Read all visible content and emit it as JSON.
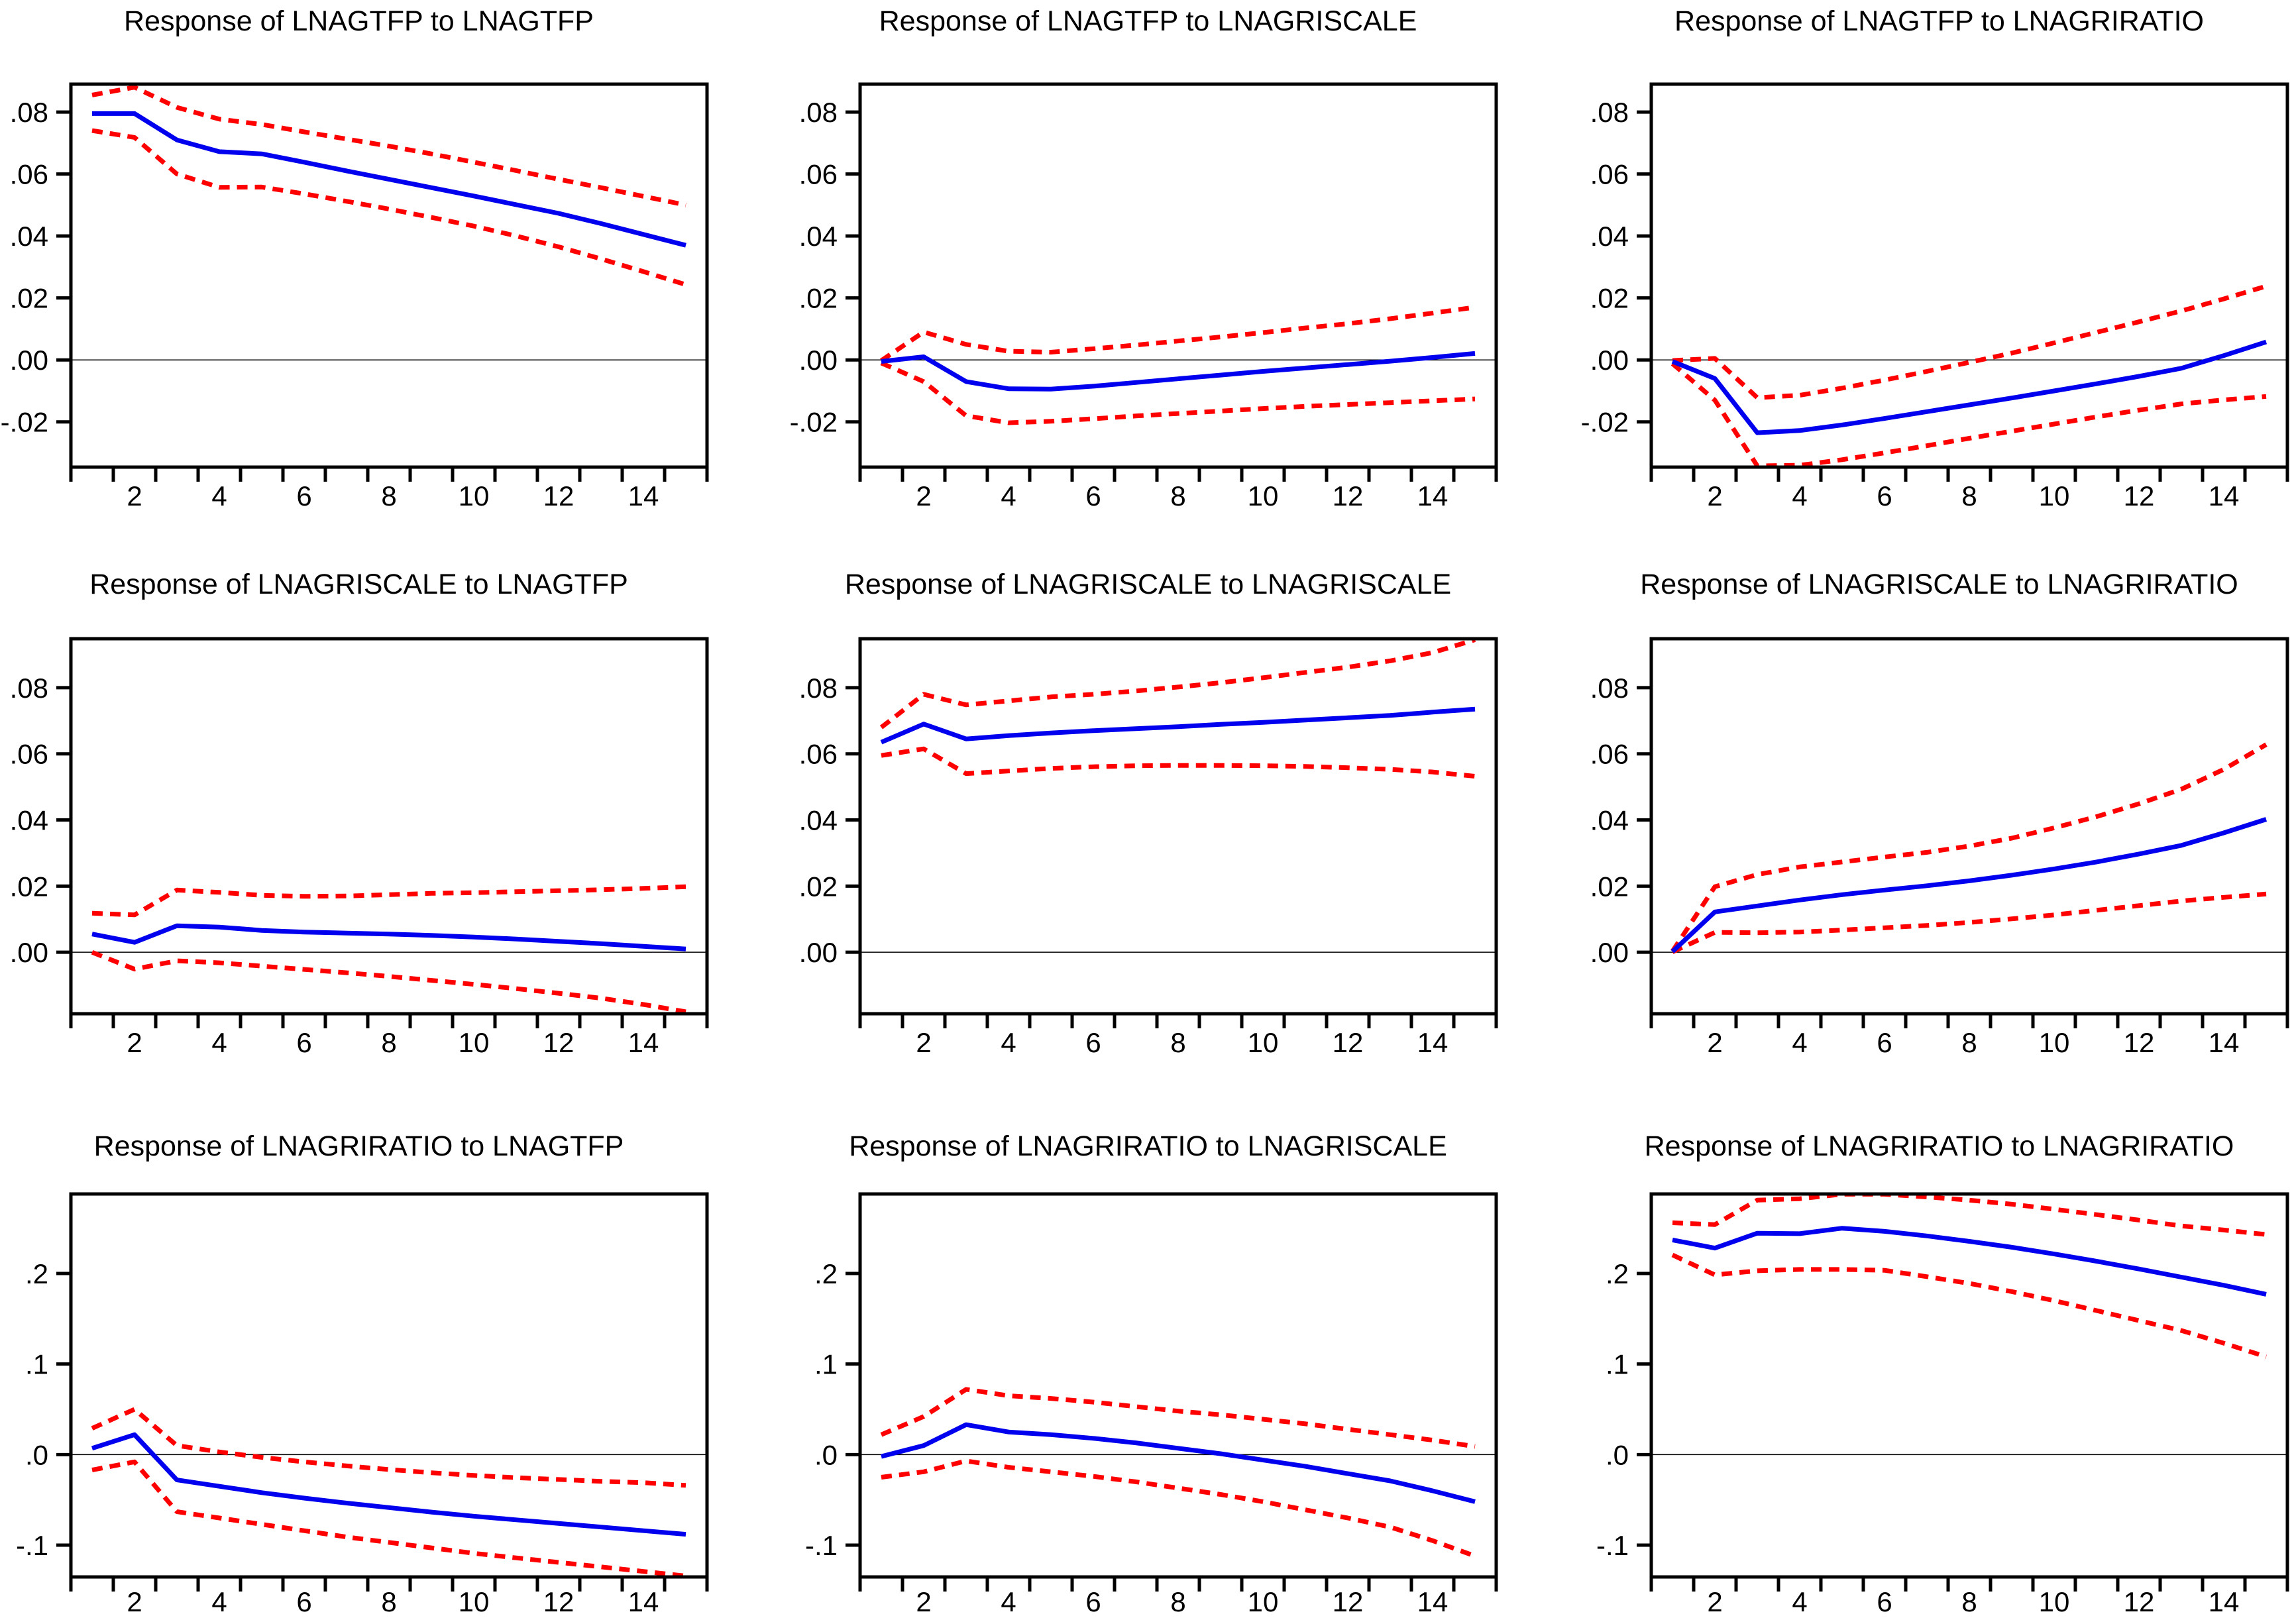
{
  "figure": {
    "kind": "impulse-response-grid",
    "grid_rows": 3,
    "grid_cols": 3,
    "background": "#ffffff"
  },
  "colors": {
    "response_line": "#0000ee",
    "confidence_band": "#ff0000",
    "axis": "#000000",
    "zero_line": "#000000",
    "text": "#000000"
  },
  "x_axis": {
    "range": [
      0.5,
      15.5
    ],
    "tick_first": 0.5,
    "tick_interval": 1,
    "label_values": [
      2,
      4,
      6,
      8,
      10,
      12,
      14
    ]
  },
  "chart_data": [
    {
      "type": "line",
      "title": "Response of LNAGTFP to LNAGTFP",
      "x": [
        1,
        2,
        3,
        4,
        5,
        6,
        7,
        8,
        9,
        10,
        11,
        12,
        13,
        14,
        15
      ],
      "series": [
        {
          "name": "response",
          "style": "solid",
          "values": [
            0.0795,
            0.0795,
            0.071,
            0.0672,
            0.0665,
            0.0638,
            0.061,
            0.0583,
            0.0556,
            0.0529,
            0.0501,
            0.0473,
            0.044,
            0.0405,
            0.037
          ]
        },
        {
          "name": "upper_band",
          "style": "dashed",
          "values": [
            0.0855,
            0.088,
            0.0815,
            0.0777,
            0.076,
            0.0736,
            0.0713,
            0.069,
            0.0665,
            0.0638,
            0.0611,
            0.0583,
            0.0556,
            0.0528,
            0.05
          ]
        },
        {
          "name": "lower_band",
          "style": "dashed",
          "values": [
            0.074,
            0.0718,
            0.06,
            0.0557,
            0.0558,
            0.0536,
            0.0512,
            0.0487,
            0.046,
            0.0432,
            0.04,
            0.0365,
            0.0326,
            0.0285,
            0.0243
          ]
        }
      ],
      "ylim": [
        -0.0346,
        0.089
      ],
      "yticks": [
        {
          "value": 0.08,
          "label": ".08"
        },
        {
          "value": 0.06,
          "label": ".06"
        },
        {
          "value": 0.04,
          "label": ".04"
        },
        {
          "value": 0.02,
          "label": ".02"
        },
        {
          "value": 0.0,
          "label": ".00"
        },
        {
          "value": -0.02,
          "label": "-.02"
        }
      ],
      "xticks": [
        2,
        4,
        6,
        8,
        10,
        12,
        14
      ]
    },
    {
      "type": "line",
      "title": "Response of LNAGTFP to LNAGRISCALE",
      "x": [
        1,
        2,
        3,
        4,
        5,
        6,
        7,
        8,
        9,
        10,
        11,
        12,
        13,
        14,
        15
      ],
      "series": [
        {
          "name": "response",
          "style": "solid",
          "values": [
            -0.0005,
            0.001,
            -0.007,
            -0.0093,
            -0.0094,
            -0.0085,
            -0.0073,
            -0.0061,
            -0.0049,
            -0.0037,
            -0.0026,
            -0.0015,
            -0.0004,
            0.0008,
            0.0021
          ]
        },
        {
          "name": "upper_band",
          "style": "dashed",
          "values": [
            -0.0002,
            0.009,
            0.005,
            0.0028,
            0.0025,
            0.0036,
            0.0048,
            0.0061,
            0.0074,
            0.0088,
            0.0103,
            0.0117,
            0.0133,
            0.0151,
            0.017
          ]
        },
        {
          "name": "lower_band",
          "style": "dashed",
          "values": [
            -0.001,
            -0.007,
            -0.018,
            -0.0203,
            -0.0198,
            -0.019,
            -0.0181,
            -0.0173,
            -0.0165,
            -0.0157,
            -0.015,
            -0.0144,
            -0.0138,
            -0.0132,
            -0.0126
          ]
        }
      ],
      "ylim": [
        -0.0346,
        0.089
      ],
      "yticks": [
        {
          "value": 0.08,
          "label": ".08"
        },
        {
          "value": 0.06,
          "label": ".06"
        },
        {
          "value": 0.04,
          "label": ".04"
        },
        {
          "value": 0.02,
          "label": ".02"
        },
        {
          "value": 0.0,
          "label": ".00"
        },
        {
          "value": -0.02,
          "label": "-.02"
        }
      ],
      "xticks": [
        2,
        4,
        6,
        8,
        10,
        12,
        14
      ]
    },
    {
      "type": "line",
      "title": "Response of LNAGTFP to LNAGRIRATIO",
      "x": [
        1,
        2,
        3,
        4,
        5,
        6,
        7,
        8,
        9,
        10,
        11,
        12,
        13,
        14,
        15
      ],
      "series": [
        {
          "name": "response",
          "style": "solid",
          "values": [
            -0.0005,
            -0.006,
            -0.0235,
            -0.0228,
            -0.021,
            -0.0189,
            -0.0167,
            -0.0145,
            -0.0123,
            -0.01,
            -0.0077,
            -0.0053,
            -0.0027,
            0.0014,
            0.0058
          ]
        },
        {
          "name": "upper_band",
          "style": "dashed",
          "values": [
            -0.0002,
            0.0005,
            -0.0122,
            -0.0114,
            -0.0091,
            -0.0065,
            -0.0037,
            -0.0008,
            0.0022,
            0.0055,
            0.0089,
            0.0123,
            0.0158,
            0.0197,
            0.0238
          ]
        },
        {
          "name": "lower_band",
          "style": "dashed",
          "values": [
            -0.0012,
            -0.013,
            -0.0342,
            -0.034,
            -0.0322,
            -0.03,
            -0.0277,
            -0.0253,
            -0.023,
            -0.0207,
            -0.0184,
            -0.0162,
            -0.0142,
            -0.0129,
            -0.0118
          ]
        }
      ],
      "ylim": [
        -0.0346,
        0.089
      ],
      "yticks": [
        {
          "value": 0.08,
          "label": ".08"
        },
        {
          "value": 0.06,
          "label": ".06"
        },
        {
          "value": 0.04,
          "label": ".04"
        },
        {
          "value": 0.02,
          "label": ".02"
        },
        {
          "value": 0.0,
          "label": ".00"
        },
        {
          "value": -0.02,
          "label": "-.02"
        }
      ],
      "xticks": [
        2,
        4,
        6,
        8,
        10,
        12,
        14
      ]
    },
    {
      "type": "line",
      "title": "Response of LNAGRISCALE to LNAGTFP",
      "x": [
        1,
        2,
        3,
        4,
        5,
        6,
        7,
        8,
        9,
        10,
        11,
        12,
        13,
        14,
        15
      ],
      "series": [
        {
          "name": "response",
          "style": "solid",
          "values": [
            0.0055,
            0.003,
            0.008,
            0.0076,
            0.0066,
            0.0061,
            0.0058,
            0.0055,
            0.0051,
            0.0046,
            0.004,
            0.0033,
            0.0026,
            0.0018,
            0.001
          ]
        },
        {
          "name": "upper_band",
          "style": "dashed",
          "values": [
            0.0118,
            0.0113,
            0.0188,
            0.0181,
            0.0172,
            0.0169,
            0.017,
            0.0174,
            0.0178,
            0.018,
            0.0183,
            0.0186,
            0.0189,
            0.0193,
            0.0198
          ]
        },
        {
          "name": "lower_band",
          "style": "dashed",
          "values": [
            0.0,
            -0.0051,
            -0.0026,
            -0.0032,
            -0.0042,
            -0.0052,
            -0.0062,
            -0.0073,
            -0.0085,
            -0.0097,
            -0.011,
            -0.0124,
            -0.0139,
            -0.0158,
            -0.018
          ]
        }
      ],
      "ylim": [
        -0.0186,
        0.0948
      ],
      "yticks": [
        {
          "value": 0.08,
          "label": ".08"
        },
        {
          "value": 0.06,
          "label": ".06"
        },
        {
          "value": 0.04,
          "label": ".04"
        },
        {
          "value": 0.02,
          "label": ".02"
        },
        {
          "value": 0.0,
          "label": ".00"
        }
      ],
      "xticks": [
        2,
        4,
        6,
        8,
        10,
        12,
        14
      ]
    },
    {
      "type": "line",
      "title": "Response of LNAGRISCALE to LNAGRISCALE",
      "x": [
        1,
        2,
        3,
        4,
        5,
        6,
        7,
        8,
        9,
        10,
        11,
        12,
        13,
        14,
        15
      ],
      "series": [
        {
          "name": "response",
          "style": "solid",
          "values": [
            0.0635,
            0.069,
            0.0645,
            0.0655,
            0.0663,
            0.067,
            0.0676,
            0.0682,
            0.0689,
            0.0695,
            0.0702,
            0.0709,
            0.0716,
            0.0726,
            0.0735
          ]
        },
        {
          "name": "upper_band",
          "style": "dashed",
          "values": [
            0.068,
            0.078,
            0.0748,
            0.076,
            0.0772,
            0.078,
            0.079,
            0.0802,
            0.0815,
            0.083,
            0.0846,
            0.0862,
            0.0881,
            0.0906,
            0.0945
          ]
        },
        {
          "name": "lower_band",
          "style": "dashed",
          "values": [
            0.0595,
            0.0615,
            0.054,
            0.0548,
            0.0556,
            0.0561,
            0.0564,
            0.0565,
            0.0565,
            0.0564,
            0.0562,
            0.0558,
            0.0553,
            0.0545,
            0.0532
          ]
        }
      ],
      "ylim": [
        -0.0186,
        0.0948
      ],
      "yticks": [
        {
          "value": 0.08,
          "label": ".08"
        },
        {
          "value": 0.06,
          "label": ".06"
        },
        {
          "value": 0.04,
          "label": ".04"
        },
        {
          "value": 0.02,
          "label": ".02"
        },
        {
          "value": 0.0,
          "label": ".00"
        }
      ],
      "xticks": [
        2,
        4,
        6,
        8,
        10,
        12,
        14
      ]
    },
    {
      "type": "line",
      "title": "Response of LNAGRISCALE to LNAGRIRATIO",
      "x": [
        1,
        2,
        3,
        4,
        5,
        6,
        7,
        8,
        9,
        10,
        11,
        12,
        13,
        14,
        15
      ],
      "series": [
        {
          "name": "response",
          "style": "solid",
          "values": [
            0.0002,
            0.0122,
            0.014,
            0.0158,
            0.0174,
            0.0188,
            0.0201,
            0.0216,
            0.0233,
            0.0252,
            0.0273,
            0.0297,
            0.0323,
            0.0361,
            0.0402
          ]
        },
        {
          "name": "upper_band",
          "style": "dashed",
          "values": [
            0.0003,
            0.0198,
            0.0235,
            0.0258,
            0.0273,
            0.0288,
            0.0302,
            0.0321,
            0.0345,
            0.0376,
            0.041,
            0.0449,
            0.0493,
            0.0553,
            0.0628
          ]
        },
        {
          "name": "lower_band",
          "style": "dashed",
          "values": [
            0.0001,
            0.006,
            0.0059,
            0.0061,
            0.0067,
            0.0074,
            0.0081,
            0.009,
            0.0101,
            0.0113,
            0.0127,
            0.0141,
            0.0155,
            0.0166,
            0.0176
          ]
        }
      ],
      "ylim": [
        -0.0186,
        0.0948
      ],
      "yticks": [
        {
          "value": 0.08,
          "label": ".08"
        },
        {
          "value": 0.06,
          "label": ".06"
        },
        {
          "value": 0.04,
          "label": ".04"
        },
        {
          "value": 0.02,
          "label": ".02"
        },
        {
          "value": 0.0,
          "label": ".00"
        }
      ],
      "xticks": [
        2,
        4,
        6,
        8,
        10,
        12,
        14
      ]
    },
    {
      "type": "line",
      "title": "Response of LNAGRIRATIO to LNAGTFP",
      "x": [
        1,
        2,
        3,
        4,
        5,
        6,
        7,
        8,
        9,
        10,
        11,
        12,
        13,
        14,
        15
      ],
      "series": [
        {
          "name": "response",
          "style": "solid",
          "values": [
            0.007,
            0.022,
            -0.028,
            -0.035,
            -0.042,
            -0.048,
            -0.0535,
            -0.0585,
            -0.0635,
            -0.068,
            -0.072,
            -0.076,
            -0.08,
            -0.084,
            -0.088
          ]
        },
        {
          "name": "upper_band",
          "style": "dashed",
          "values": [
            0.029,
            0.05,
            0.01,
            0.003,
            -0.003,
            -0.008,
            -0.0125,
            -0.0165,
            -0.02,
            -0.023,
            -0.0255,
            -0.0275,
            -0.0295,
            -0.031,
            -0.034
          ]
        },
        {
          "name": "lower_band",
          "style": "dashed",
          "values": [
            -0.017,
            -0.008,
            -0.063,
            -0.07,
            -0.077,
            -0.084,
            -0.091,
            -0.097,
            -0.103,
            -0.109,
            -0.114,
            -0.119,
            -0.124,
            -0.129,
            -0.134
          ]
        }
      ],
      "ylim": [
        -0.1351,
        0.2878
      ],
      "yticks": [
        {
          "value": 0.2,
          "label": ".2"
        },
        {
          "value": 0.1,
          "label": ".1"
        },
        {
          "value": 0.0,
          "label": ".0"
        },
        {
          "value": -0.1,
          "label": "-.1"
        }
      ],
      "xticks": [
        2,
        4,
        6,
        8,
        10,
        12,
        14
      ]
    },
    {
      "type": "line",
      "title": "Response of LNAGRIRATIO to LNAGRISCALE",
      "x": [
        1,
        2,
        3,
        4,
        5,
        6,
        7,
        8,
        9,
        10,
        11,
        12,
        13,
        14,
        15
      ],
      "series": [
        {
          "name": "response",
          "style": "solid",
          "values": [
            -0.002,
            0.01,
            0.033,
            0.025,
            0.022,
            0.018,
            0.013,
            0.007,
            0.001,
            -0.006,
            -0.013,
            -0.021,
            -0.029,
            -0.04,
            -0.052
          ]
        },
        {
          "name": "upper_band",
          "style": "dashed",
          "values": [
            0.022,
            0.042,
            0.072,
            0.065,
            0.062,
            0.058,
            0.053,
            0.048,
            0.044,
            0.039,
            0.034,
            0.028,
            0.022,
            0.016,
            0.009
          ]
        },
        {
          "name": "lower_band",
          "style": "dashed",
          "values": [
            -0.025,
            -0.019,
            -0.007,
            -0.014,
            -0.019,
            -0.024,
            -0.03,
            -0.037,
            -0.044,
            -0.052,
            -0.061,
            -0.07,
            -0.08,
            -0.095,
            -0.112
          ]
        }
      ],
      "ylim": [
        -0.1351,
        0.2878
      ],
      "yticks": [
        {
          "value": 0.2,
          "label": ".2"
        },
        {
          "value": 0.1,
          "label": ".1"
        },
        {
          "value": 0.0,
          "label": ".0"
        },
        {
          "value": -0.1,
          "label": "-.1"
        }
      ],
      "xticks": [
        2,
        4,
        6,
        8,
        10,
        12,
        14
      ]
    },
    {
      "type": "line",
      "title": "Response of LNAGRIRATIO to LNAGRIRATIO",
      "x": [
        1,
        2,
        3,
        4,
        5,
        6,
        7,
        8,
        9,
        10,
        11,
        12,
        13,
        14,
        15
      ],
      "series": [
        {
          "name": "response",
          "style": "solid",
          "values": [
            0.237,
            0.228,
            0.2445,
            0.244,
            0.25,
            0.2465,
            0.2415,
            0.2355,
            0.229,
            0.2215,
            0.2135,
            0.205,
            0.196,
            0.187,
            0.177
          ]
        },
        {
          "name": "upper_band",
          "style": "dashed",
          "values": [
            0.256,
            0.254,
            0.281,
            0.2825,
            0.2875,
            0.2875,
            0.2845,
            0.281,
            0.2765,
            0.271,
            0.265,
            0.259,
            0.2525,
            0.248,
            0.243
          ]
        },
        {
          "name": "lower_band",
          "style": "dashed",
          "values": [
            0.2205,
            0.1985,
            0.203,
            0.2045,
            0.2045,
            0.2035,
            0.1965,
            0.189,
            0.18,
            0.17,
            0.159,
            0.148,
            0.137,
            0.123,
            0.108
          ]
        }
      ],
      "ylim": [
        -0.1351,
        0.2878
      ],
      "yticks": [
        {
          "value": 0.2,
          "label": ".2"
        },
        {
          "value": 0.1,
          "label": ".1"
        },
        {
          "value": 0.0,
          "label": ".0"
        },
        {
          "value": -0.1,
          "label": "-.1"
        }
      ],
      "xticks": [
        2,
        4,
        6,
        8,
        10,
        12,
        14
      ]
    }
  ]
}
